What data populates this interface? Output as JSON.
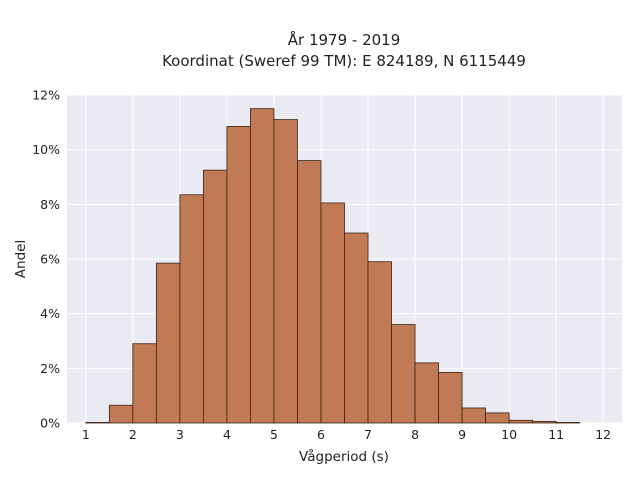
{
  "chart_data": {
    "type": "bar",
    "title_line1": "År 1979 - 2019",
    "title_line2": "Koordinat (Sweref 99 TM): E 824189, N 6115449",
    "xlabel": "Vågperiod (s)",
    "ylabel": "Andel",
    "xlim": [
      0.6,
      12.4
    ],
    "ylim": [
      0,
      12
    ],
    "xticks": [
      1,
      2,
      3,
      4,
      5,
      6,
      7,
      8,
      9,
      10,
      11,
      12
    ],
    "yticks": [
      0,
      2,
      4,
      6,
      8,
      10,
      12
    ],
    "yticklabels": [
      "0%",
      "2%",
      "4%",
      "6%",
      "8%",
      "10%",
      "12%"
    ],
    "bin_width": 0.5,
    "bins": [
      {
        "start": 1.0,
        "value": 0.02
      },
      {
        "start": 1.5,
        "value": 0.65
      },
      {
        "start": 2.0,
        "value": 2.9
      },
      {
        "start": 2.5,
        "value": 5.85
      },
      {
        "start": 3.0,
        "value": 8.35
      },
      {
        "start": 3.5,
        "value": 9.25
      },
      {
        "start": 4.0,
        "value": 10.85
      },
      {
        "start": 4.5,
        "value": 11.5
      },
      {
        "start": 5.0,
        "value": 11.1
      },
      {
        "start": 5.5,
        "value": 9.6
      },
      {
        "start": 6.0,
        "value": 8.05
      },
      {
        "start": 6.5,
        "value": 6.95
      },
      {
        "start": 7.0,
        "value": 5.9
      },
      {
        "start": 7.5,
        "value": 3.6
      },
      {
        "start": 8.0,
        "value": 2.2
      },
      {
        "start": 8.5,
        "value": 1.85
      },
      {
        "start": 9.0,
        "value": 0.55
      },
      {
        "start": 9.5,
        "value": 0.37
      },
      {
        "start": 10.0,
        "value": 0.1
      },
      {
        "start": 10.5,
        "value": 0.06
      },
      {
        "start": 11.0,
        "value": 0.02
      }
    ],
    "grid": true,
    "bar_color": "#c07a55",
    "edge_color": "#3d2314",
    "plot_background": "#eaeaf2"
  }
}
